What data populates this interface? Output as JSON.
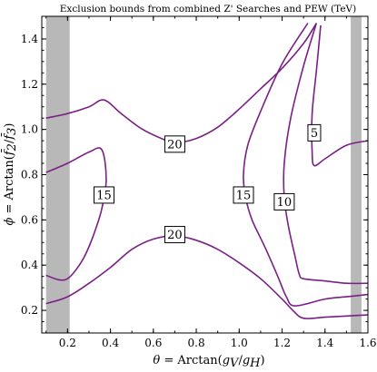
{
  "chart_data": {
    "type": "contour",
    "title": "Exclusion bounds from combined Z' Searches and PEW (TeV)",
    "xlabel": {
      "var": "θ",
      "eq": " = Arctan(",
      "num": "g",
      "num_sub": "V",
      "slash": "/",
      "den": "g",
      "den_sub": "H",
      "close": ")"
    },
    "ylabel": {
      "var": "ϕ",
      "eq": " = Arctan(",
      "num": "f̄",
      "num_sub": "2",
      "slash": "/",
      "den": "f̄",
      "den_sub": "3",
      "close": ")"
    },
    "xlim": [
      0.08,
      1.6
    ],
    "ylim": [
      0.1,
      1.5
    ],
    "x_ticks": [
      0.2,
      0.4,
      0.6,
      0.8,
      1.0,
      1.2,
      1.4,
      1.6
    ],
    "x_tick_labels": [
      "0.2",
      "0.4",
      "0.6",
      "0.8",
      "1.0",
      "1.2",
      "1.4",
      "1.6"
    ],
    "y_ticks": [
      0.2,
      0.4,
      0.6,
      0.8,
      1.0,
      1.2,
      1.4
    ],
    "y_tick_labels": [
      "0.2",
      "0.4",
      "0.6",
      "0.8",
      "1.0",
      "1.2",
      "1.4"
    ],
    "shaded_regions": [
      {
        "x": [
          0.1,
          0.21
        ],
        "y": [
          0.1,
          1.5
        ],
        "color": "#b8b8b8"
      },
      {
        "x": [
          1.52,
          1.57
        ],
        "y": [
          0.1,
          1.5
        ],
        "color": "#b8b8b8"
      }
    ],
    "contour_color": "#7a1f86",
    "contours": [
      {
        "level": "20",
        "points": [
          [
            0.1,
            1.05
          ],
          [
            0.2,
            1.07
          ],
          [
            0.3,
            1.1
          ],
          [
            0.37,
            1.13
          ],
          [
            0.45,
            1.07
          ],
          [
            0.55,
            1.0
          ],
          [
            0.65,
            0.955
          ],
          [
            0.7,
            0.94
          ],
          [
            0.8,
            0.96
          ],
          [
            0.9,
            1.01
          ],
          [
            1.0,
            1.09
          ],
          [
            1.1,
            1.18
          ],
          [
            1.2,
            1.27
          ],
          [
            1.3,
            1.38
          ],
          [
            1.36,
            1.47
          ]
        ]
      },
      {
        "level": "20",
        "points": [
          [
            0.1,
            0.23
          ],
          [
            0.2,
            0.26
          ],
          [
            0.3,
            0.32
          ],
          [
            0.4,
            0.39
          ],
          [
            0.5,
            0.47
          ],
          [
            0.6,
            0.515
          ],
          [
            0.7,
            0.53
          ],
          [
            0.8,
            0.51
          ],
          [
            0.9,
            0.47
          ],
          [
            1.0,
            0.41
          ],
          [
            1.1,
            0.34
          ],
          [
            1.2,
            0.25
          ],
          [
            1.25,
            0.2
          ],
          [
            1.3,
            0.165
          ],
          [
            1.4,
            0.17
          ],
          [
            1.5,
            0.175
          ],
          [
            1.6,
            0.18
          ]
        ]
      },
      {
        "level": "15",
        "points": [
          [
            0.1,
            0.81
          ],
          [
            0.2,
            0.85
          ],
          [
            0.3,
            0.9
          ],
          [
            0.36,
            0.91
          ],
          [
            0.38,
            0.78
          ],
          [
            0.36,
            0.65
          ],
          [
            0.32,
            0.53
          ],
          [
            0.28,
            0.44
          ],
          [
            0.24,
            0.38
          ],
          [
            0.2,
            0.34
          ],
          [
            0.16,
            0.335
          ],
          [
            0.1,
            0.355
          ]
        ]
      },
      {
        "level": "15",
        "points": [
          [
            1.32,
            1.47
          ],
          [
            1.2,
            1.29
          ],
          [
            1.1,
            1.08
          ],
          [
            1.04,
            0.93
          ],
          [
            1.02,
            0.8
          ],
          [
            1.03,
            0.7
          ],
          [
            1.06,
            0.6
          ],
          [
            1.12,
            0.48
          ],
          [
            1.18,
            0.35
          ],
          [
            1.22,
            0.26
          ],
          [
            1.26,
            0.22
          ],
          [
            1.4,
            0.25
          ],
          [
            1.5,
            0.26
          ],
          [
            1.6,
            0.27
          ]
        ]
      },
      {
        "level": "10",
        "points": [
          [
            1.36,
            1.47
          ],
          [
            1.3,
            1.28
          ],
          [
            1.24,
            1.05
          ],
          [
            1.21,
            0.85
          ],
          [
            1.21,
            0.7
          ],
          [
            1.23,
            0.57
          ],
          [
            1.26,
            0.44
          ],
          [
            1.28,
            0.36
          ],
          [
            1.3,
            0.34
          ],
          [
            1.4,
            0.33
          ],
          [
            1.5,
            0.32
          ],
          [
            1.6,
            0.32
          ]
        ]
      },
      {
        "level": "5",
        "points": [
          [
            1.38,
            1.46
          ],
          [
            1.36,
            1.26
          ],
          [
            1.34,
            1.07
          ],
          [
            1.34,
            0.9
          ],
          [
            1.35,
            0.84
          ],
          [
            1.4,
            0.87
          ],
          [
            1.5,
            0.93
          ],
          [
            1.6,
            0.95
          ]
        ]
      }
    ],
    "contour_labels": [
      {
        "text": "20",
        "x": 0.7,
        "y": 0.935
      },
      {
        "text": "20",
        "x": 0.7,
        "y": 0.535
      },
      {
        "text": "15",
        "x": 0.37,
        "y": 0.71
      },
      {
        "text": "15",
        "x": 1.02,
        "y": 0.71
      },
      {
        "text": "10",
        "x": 1.21,
        "y": 0.68
      },
      {
        "text": "5",
        "x": 1.35,
        "y": 0.985
      }
    ],
    "grid": false
  }
}
